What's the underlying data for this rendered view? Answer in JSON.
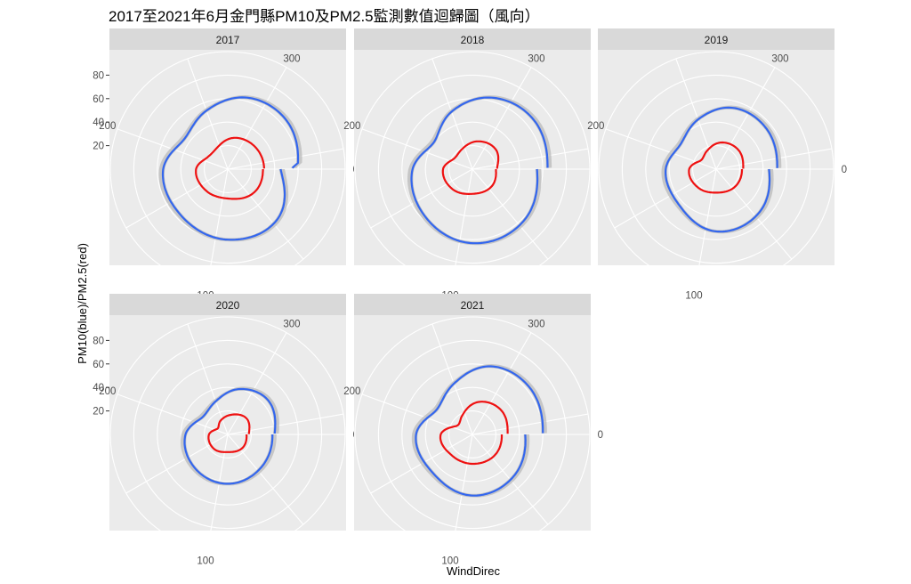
{
  "chart_data": {
    "type": "polar-line",
    "title": "2017至2021年6月金門縣PM10及PM2.5監測數值迴歸圖（風向）",
    "xlabel": "WindDirec",
    "ylabel": "PM10(blue)/PM2.5(red)",
    "radial_ticks": [
      "20",
      "40",
      "60",
      "80"
    ],
    "radial_range": [
      0,
      100
    ],
    "angle_ticks": [
      "0",
      "100",
      "200",
      "300"
    ],
    "angle_range": [
      0,
      360
    ],
    "series_colors": {
      "PM10": "#3366ee",
      "PM2.5": "#ee1111",
      "ribbon": "#bdbdbd"
    },
    "panels": [
      {
        "label": "2017",
        "pm10": [
          [
            0,
            45
          ],
          [
            45,
            60
          ],
          [
            90,
            60
          ],
          [
            135,
            56
          ],
          [
            180,
            55
          ],
          [
            215,
            45
          ],
          [
            250,
            53
          ],
          [
            285,
            63
          ],
          [
            320,
            65
          ],
          [
            355,
            60
          ],
          [
            359,
            55
          ]
        ],
        "pm25": [
          [
            0,
            30
          ],
          [
            40,
            30
          ],
          [
            90,
            25
          ],
          [
            135,
            26
          ],
          [
            180,
            27
          ],
          [
            210,
            20
          ],
          [
            240,
            20
          ],
          [
            280,
            27
          ],
          [
            320,
            30
          ],
          [
            358,
            31
          ]
        ]
      },
      {
        "label": "2018",
        "pm10": [
          [
            0,
            55
          ],
          [
            45,
            62
          ],
          [
            90,
            63
          ],
          [
            135,
            57
          ],
          [
            180,
            51
          ],
          [
            215,
            40
          ],
          [
            250,
            52
          ],
          [
            285,
            63
          ],
          [
            320,
            67
          ],
          [
            359,
            64
          ]
        ],
        "pm25": [
          [
            0,
            20
          ],
          [
            40,
            22
          ],
          [
            90,
            21
          ],
          [
            135,
            24
          ],
          [
            180,
            25
          ],
          [
            210,
            18
          ],
          [
            240,
            19
          ],
          [
            280,
            24
          ],
          [
            320,
            26
          ],
          [
            358,
            21
          ]
        ]
      },
      {
        "label": "2019",
        "pm10": [
          [
            0,
            45
          ],
          [
            45,
            52
          ],
          [
            90,
            53
          ],
          [
            135,
            44
          ],
          [
            180,
            43
          ],
          [
            215,
            37
          ],
          [
            250,
            45
          ],
          [
            285,
            54
          ],
          [
            320,
            55
          ],
          [
            359,
            52
          ]
        ],
        "pm25": [
          [
            0,
            22
          ],
          [
            40,
            22
          ],
          [
            90,
            20
          ],
          [
            135,
            22
          ],
          [
            180,
            23
          ],
          [
            210,
            15
          ],
          [
            240,
            17
          ],
          [
            280,
            23
          ],
          [
            320,
            25
          ],
          [
            358,
            23
          ]
        ]
      },
      {
        "label": "2020",
        "pm10": [
          [
            0,
            38
          ],
          [
            45,
            40
          ],
          [
            90,
            42
          ],
          [
            135,
            40
          ],
          [
            180,
            36
          ],
          [
            215,
            26
          ],
          [
            250,
            30
          ],
          [
            285,
            40
          ],
          [
            320,
            45
          ],
          [
            359,
            40
          ]
        ],
        "pm25": [
          [
            0,
            16
          ],
          [
            40,
            17
          ],
          [
            90,
            15
          ],
          [
            135,
            17
          ],
          [
            180,
            16
          ],
          [
            210,
            10
          ],
          [
            240,
            13
          ],
          [
            280,
            17
          ],
          [
            320,
            21
          ],
          [
            358,
            18
          ]
        ]
      },
      {
        "label": "2021",
        "pm10": [
          [
            0,
            45
          ],
          [
            45,
            50
          ],
          [
            90,
            52
          ],
          [
            135,
            47
          ],
          [
            180,
            48
          ],
          [
            215,
            37
          ],
          [
            250,
            46
          ],
          [
            285,
            60
          ],
          [
            320,
            63
          ],
          [
            359,
            60
          ]
        ],
        "pm25": [
          [
            0,
            25
          ],
          [
            40,
            26
          ],
          [
            90,
            25
          ],
          [
            135,
            25
          ],
          [
            180,
            27
          ],
          [
            210,
            15
          ],
          [
            240,
            18
          ],
          [
            280,
            28
          ],
          [
            320,
            32
          ],
          [
            358,
            30
          ]
        ]
      }
    ]
  }
}
